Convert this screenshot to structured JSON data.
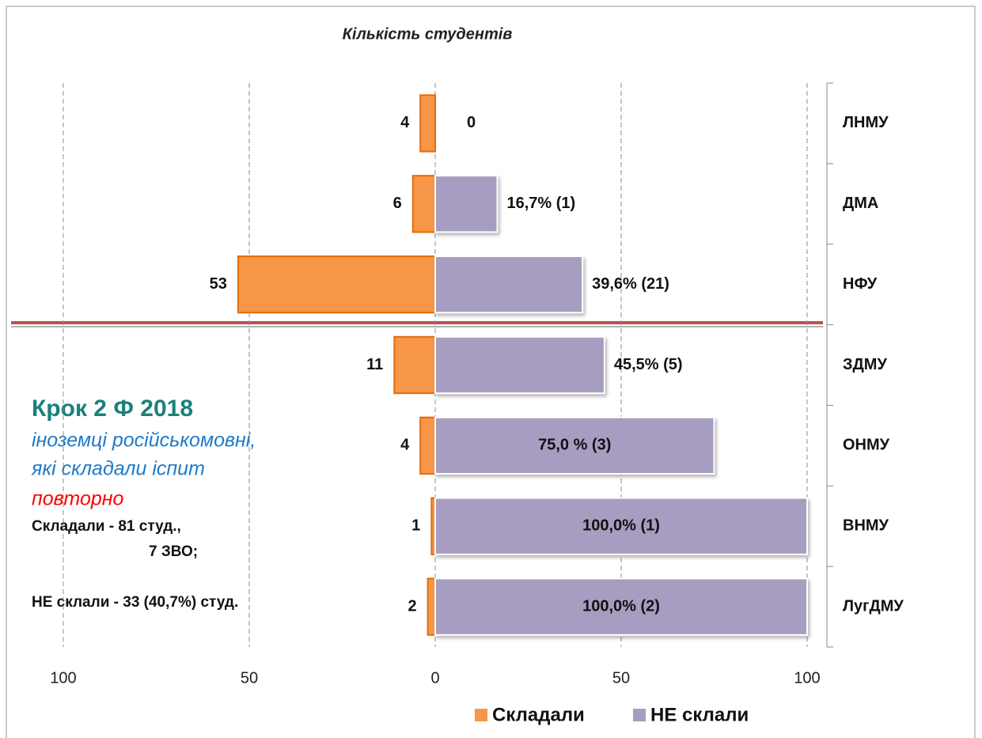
{
  "chart_data": {
    "type": "bar",
    "orientation": "horizontal",
    "title": "Кількість студентів",
    "categories": [
      "ЛНМУ",
      "ДМА",
      "НФУ",
      "ЗДМУ",
      "ОНМУ",
      "ВНМУ",
      "ЛугДМУ"
    ],
    "series": [
      {
        "name": "Складали",
        "color": "#f79646",
        "values": [
          4,
          6,
          53,
          11,
          4,
          1,
          2
        ]
      },
      {
        "name": "НЕ склали",
        "color": "#a79dc0",
        "values": [
          0,
          16.7,
          39.6,
          45.5,
          75.0,
          100.0,
          100.0
        ],
        "value_labels": [
          "0",
          "16,7% (1)",
          "39,6% (21)",
          "45,5% (5)",
          "75,0 % (3)",
          "100,0% (1)",
          "100,0% (2)"
        ]
      }
    ],
    "xlim": [
      -100,
      100
    ],
    "xticks": [
      {
        "value": -100,
        "label": "100"
      },
      {
        "value": -50,
        "label": "50"
      },
      0,
      50,
      100
    ],
    "grid": true,
    "legend": "bottom",
    "annotations": [
      "Крок 2 Ф   2018",
      "іноземці російськомовні,",
      "які складали іспит",
      "повторно",
      "Складали - 81 студ.,",
      "7 ЗВО;",
      "НЕ склали - 33 (40,7%) студ."
    ]
  }
}
